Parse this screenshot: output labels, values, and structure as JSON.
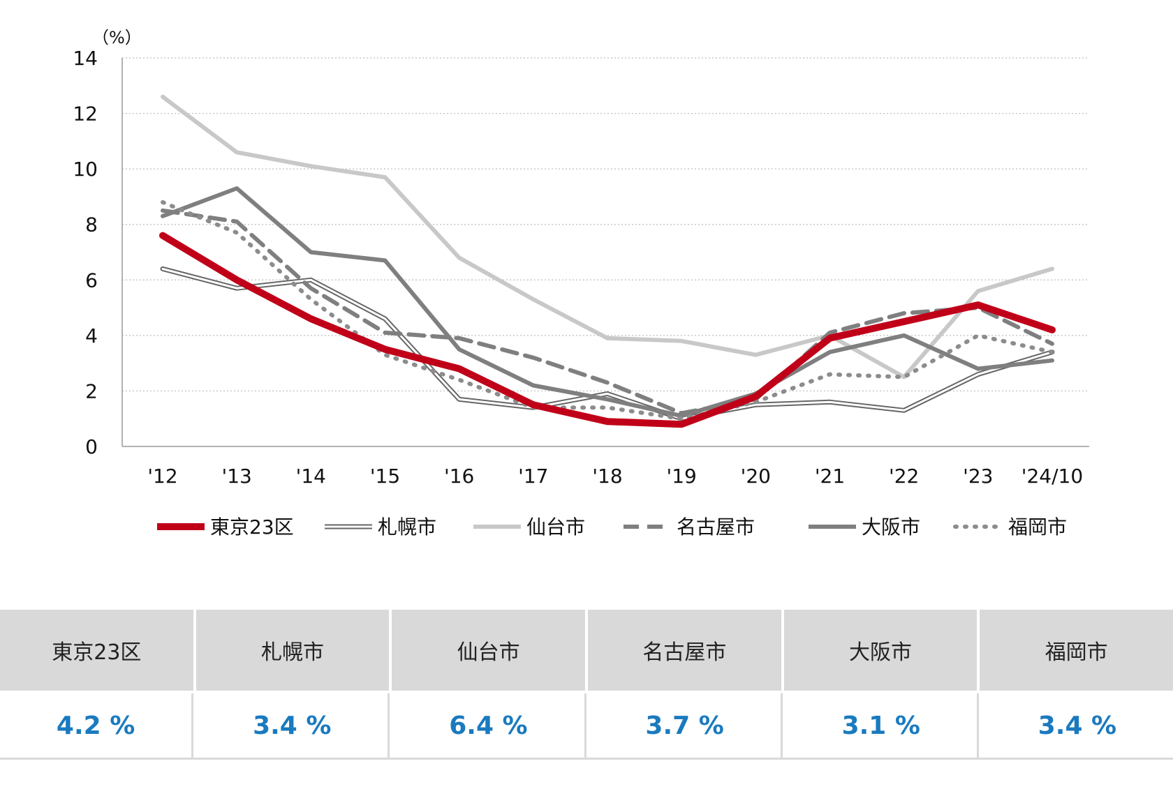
{
  "chart_data": {
    "type": "line",
    "unit_label": "（%）",
    "ylim": [
      0,
      14
    ],
    "yticks": [
      0,
      2,
      4,
      6,
      8,
      10,
      12,
      14
    ],
    "grid": true,
    "legend_position": "bottom",
    "categories": [
      "'12",
      "'13",
      "'14",
      "'15",
      "'16",
      "'17",
      "'18",
      "'19",
      "'20",
      "'21",
      "'22",
      "'23",
      "'24/10"
    ],
    "series": [
      {
        "name": "札幌市",
        "color": "#666666",
        "style": "double",
        "values": [
          6.4,
          5.7,
          6.0,
          4.6,
          1.7,
          1.4,
          1.9,
          1.0,
          1.5,
          1.6,
          1.3,
          2.6,
          3.4
        ]
      },
      {
        "name": "仙台市",
        "color": "#c8c8c8",
        "style": "solid",
        "values": [
          12.6,
          10.6,
          10.1,
          9.7,
          6.8,
          5.3,
          3.9,
          3.8,
          3.3,
          4.0,
          2.5,
          5.6,
          6.4
        ]
      },
      {
        "name": "名古屋市",
        "color": "#7f7f7f",
        "style": "dashed",
        "values": [
          8.5,
          8.1,
          5.7,
          4.1,
          3.9,
          3.2,
          2.3,
          1.2,
          1.7,
          4.1,
          4.8,
          5.0,
          3.7
        ]
      },
      {
        "name": "大阪市",
        "color": "#7f7f7f",
        "style": "solid",
        "values": [
          8.3,
          9.3,
          7.0,
          6.7,
          3.5,
          2.2,
          1.7,
          1.1,
          1.9,
          3.4,
          4.0,
          2.8,
          3.1
        ]
      },
      {
        "name": "福岡市",
        "color": "#8c8c8c",
        "style": "dotted",
        "values": [
          8.8,
          7.7,
          5.3,
          3.3,
          2.4,
          1.4,
          1.4,
          1.0,
          1.6,
          2.6,
          2.5,
          4.0,
          3.4
        ]
      },
      {
        "name": "東京23区",
        "color": "#c00018",
        "style": "thick",
        "values": [
          7.6,
          6.0,
          4.6,
          3.5,
          2.8,
          1.5,
          0.9,
          0.8,
          1.8,
          3.9,
          4.5,
          5.1,
          4.2
        ]
      }
    ],
    "legend_order": [
      "東京23区",
      "札幌市",
      "仙台市",
      "名古屋市",
      "大阪市",
      "福岡市"
    ]
  },
  "summary": {
    "headers": [
      "東京23区",
      "札幌市",
      "仙台市",
      "名古屋市",
      "大阪市",
      "福岡市"
    ],
    "values": [
      "4.2 %",
      "3.4 %",
      "6.4 %",
      "3.7 %",
      "3.1 %",
      "3.4 %"
    ]
  }
}
